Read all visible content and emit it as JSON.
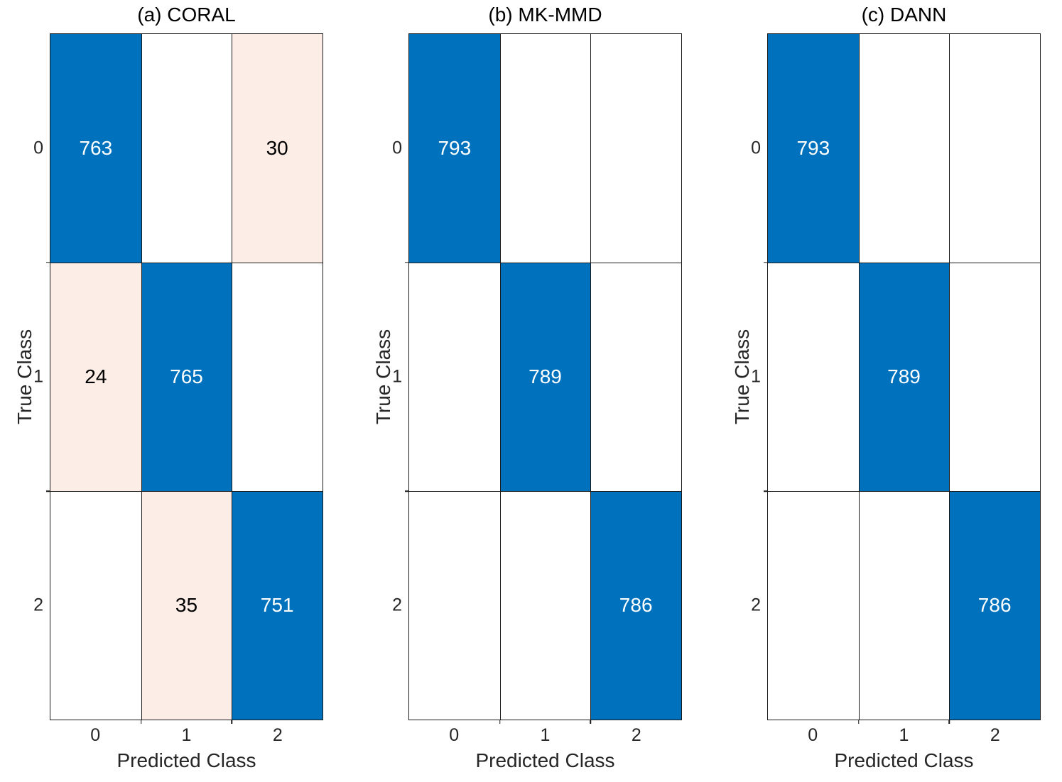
{
  "figure": {
    "background": "#ffffff",
    "colors": {
      "diagonal_fill": "#0072BD",
      "diagonal_text": "#ffffff",
      "offdiagonal_fill": "#FCEDE6",
      "offdiagonal_text": "#000000",
      "empty_fill": "#ffffff",
      "grid_line": "#1a1a1a",
      "label_color": "#262626",
      "title_color": "#000000"
    }
  },
  "chart_data": [
    {
      "type": "heatmap",
      "subtype": "confusion-matrix",
      "title": "(a) CORAL",
      "xlabel": "Predicted Class",
      "ylabel": "True Class",
      "x_tick_labels": [
        "0",
        "1",
        "2"
      ],
      "y_tick_labels": [
        "0",
        "1",
        "2"
      ],
      "matrix": [
        [
          763,
          null,
          30
        ],
        [
          24,
          765,
          null
        ],
        [
          null,
          35,
          751
        ]
      ],
      "grid": true,
      "legend": "none"
    },
    {
      "type": "heatmap",
      "subtype": "confusion-matrix",
      "title": "(b) MK-MMD",
      "xlabel": "Predicted Class",
      "ylabel": "True Class",
      "x_tick_labels": [
        "0",
        "1",
        "2"
      ],
      "y_tick_labels": [
        "0",
        "1",
        "2"
      ],
      "matrix": [
        [
          793,
          null,
          null
        ],
        [
          null,
          789,
          null
        ],
        [
          null,
          null,
          786
        ]
      ],
      "grid": true,
      "legend": "none"
    },
    {
      "type": "heatmap",
      "subtype": "confusion-matrix",
      "title": "(c) DANN",
      "xlabel": "Predicted Class",
      "ylabel": "True Class",
      "x_tick_labels": [
        "0",
        "1",
        "2"
      ],
      "y_tick_labels": [
        "0",
        "1",
        "2"
      ],
      "matrix": [
        [
          793,
          null,
          null
        ],
        [
          null,
          789,
          null
        ],
        [
          null,
          null,
          786
        ]
      ],
      "grid": true,
      "legend": "none"
    }
  ]
}
